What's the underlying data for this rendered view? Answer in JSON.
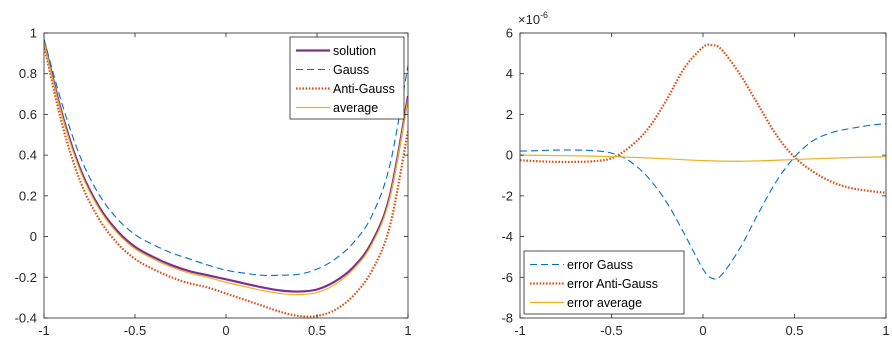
{
  "chart_data": [
    {
      "type": "line",
      "title": "",
      "xlabel": "",
      "ylabel": "",
      "xlim": [
        -1,
        1
      ],
      "ylim": [
        -0.4,
        1
      ],
      "xticks": [
        "-1",
        "-0.5",
        "0",
        "0.5",
        "1"
      ],
      "yticks": [
        "-0.4",
        "-0.2",
        "0",
        "0.2",
        "0.4",
        "0.6",
        "0.8",
        "1"
      ],
      "grid": false,
      "legend_position": "top-right",
      "series": [
        {
          "name": "solution",
          "color": "#7E2F8E",
          "style": "solid-thick",
          "x": [
            -1,
            -0.9,
            -0.8,
            -0.7,
            -0.6,
            -0.5,
            -0.4,
            -0.3,
            -0.2,
            -0.1,
            0,
            0.1,
            0.2,
            0.3,
            0.4,
            0.5,
            0.6,
            0.7,
            0.8,
            0.9,
            1
          ],
          "y": [
            0.96,
            0.6,
            0.33,
            0.15,
            0.03,
            -0.05,
            -0.1,
            -0.14,
            -0.17,
            -0.19,
            -0.21,
            -0.23,
            -0.25,
            -0.265,
            -0.27,
            -0.26,
            -0.22,
            -0.15,
            -0.03,
            0.2,
            0.69
          ]
        },
        {
          "name": "Gauss",
          "color": "#0072BD",
          "style": "dashed",
          "x": [
            -1,
            -0.9,
            -0.8,
            -0.7,
            -0.6,
            -0.5,
            -0.4,
            -0.3,
            -0.2,
            -0.1,
            0,
            0.1,
            0.2,
            0.3,
            0.4,
            0.5,
            0.6,
            0.7,
            0.8,
            0.9,
            1
          ],
          "y": [
            0.97,
            0.65,
            0.39,
            0.21,
            0.09,
            0.01,
            -0.04,
            -0.08,
            -0.11,
            -0.14,
            -0.165,
            -0.18,
            -0.19,
            -0.19,
            -0.185,
            -0.16,
            -0.11,
            -0.03,
            0.1,
            0.35,
            0.84
          ]
        },
        {
          "name": "Anti-Gauss",
          "color": "#D95319",
          "style": "dotted",
          "x": [
            -1,
            -0.9,
            -0.8,
            -0.7,
            -0.6,
            -0.5,
            -0.4,
            -0.3,
            -0.2,
            -0.1,
            0,
            0.1,
            0.2,
            0.3,
            0.4,
            0.5,
            0.6,
            0.7,
            0.8,
            0.9,
            1
          ],
          "y": [
            0.94,
            0.55,
            0.27,
            0.09,
            -0.03,
            -0.11,
            -0.16,
            -0.2,
            -0.23,
            -0.25,
            -0.28,
            -0.31,
            -0.34,
            -0.37,
            -0.39,
            -0.39,
            -0.36,
            -0.29,
            -0.17,
            0.05,
            0.52
          ]
        },
        {
          "name": "average",
          "color": "#EDB120",
          "style": "solid",
          "x": [
            -1,
            -0.9,
            -0.8,
            -0.7,
            -0.6,
            -0.5,
            -0.4,
            -0.3,
            -0.2,
            -0.1,
            0,
            0.1,
            0.2,
            0.3,
            0.4,
            0.5,
            0.6,
            0.7,
            0.8,
            0.9,
            1
          ],
          "y": [
            0.955,
            0.59,
            0.32,
            0.14,
            0.02,
            -0.06,
            -0.11,
            -0.15,
            -0.18,
            -0.2,
            -0.225,
            -0.245,
            -0.265,
            -0.28,
            -0.285,
            -0.275,
            -0.235,
            -0.16,
            -0.04,
            0.19,
            0.68
          ]
        }
      ]
    },
    {
      "type": "line",
      "title": "",
      "xlabel": "",
      "ylabel": "",
      "y_exponent_base": "×10",
      "y_exponent_power": "-6",
      "xlim": [
        -1,
        1
      ],
      "ylim": [
        -8,
        6
      ],
      "xticks": [
        "-1",
        "-0.5",
        "0",
        "0.5",
        "1"
      ],
      "yticks": [
        "-8",
        "-6",
        "-4",
        "-2",
        "0",
        "2",
        "4",
        "6"
      ],
      "grid": false,
      "legend_position": "bottom-left",
      "series": [
        {
          "name": "error Gauss",
          "color": "#0072BD",
          "style": "dashed",
          "x": [
            -1,
            -0.9,
            -0.8,
            -0.7,
            -0.6,
            -0.5,
            -0.4,
            -0.3,
            -0.2,
            -0.1,
            0,
            0.05,
            0.1,
            0.2,
            0.3,
            0.4,
            0.5,
            0.6,
            0.7,
            0.8,
            0.9,
            1
          ],
          "y": [
            0.2,
            0.22,
            0.25,
            0.25,
            0.22,
            0.1,
            -0.3,
            -1.1,
            -2.3,
            -3.9,
            -5.6,
            -6.05,
            -5.9,
            -4.6,
            -2.9,
            -1.3,
            -0.1,
            0.7,
            1.1,
            1.3,
            1.45,
            1.55
          ]
        },
        {
          "name": "error Anti-Gauss",
          "color": "#D95319",
          "style": "dotted",
          "x": [
            -1,
            -0.9,
            -0.8,
            -0.7,
            -0.6,
            -0.5,
            -0.4,
            -0.3,
            -0.2,
            -0.1,
            0,
            0.05,
            0.1,
            0.2,
            0.3,
            0.4,
            0.5,
            0.6,
            0.7,
            0.8,
            0.9,
            1
          ],
          "y": [
            -0.25,
            -0.3,
            -0.33,
            -0.33,
            -0.3,
            -0.15,
            0.4,
            1.3,
            2.7,
            4.3,
            5.3,
            5.4,
            5.2,
            4.0,
            2.5,
            1.0,
            -0.1,
            -0.8,
            -1.3,
            -1.6,
            -1.75,
            -1.85
          ]
        },
        {
          "name": "error average",
          "color": "#EDB120",
          "style": "solid",
          "x": [
            -1,
            -0.8,
            -0.6,
            -0.4,
            -0.2,
            0,
            0.2,
            0.4,
            0.6,
            0.8,
            1
          ],
          "y": [
            0.0,
            -0.02,
            -0.05,
            -0.1,
            -0.18,
            -0.27,
            -0.3,
            -0.25,
            -0.18,
            -0.12,
            -0.08
          ]
        }
      ]
    }
  ]
}
